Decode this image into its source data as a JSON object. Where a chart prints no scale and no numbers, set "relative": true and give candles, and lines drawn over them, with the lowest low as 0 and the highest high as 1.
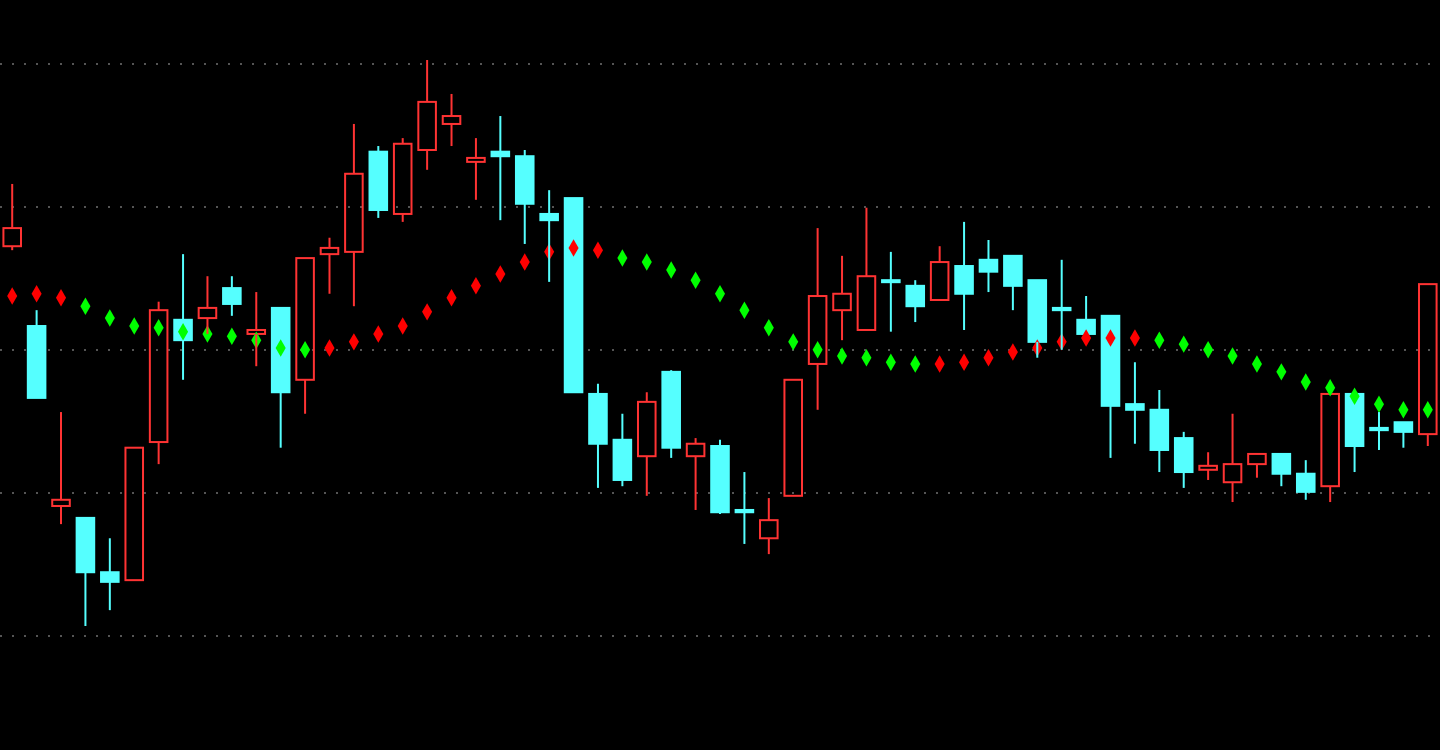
{
  "chart_data": {
    "type": "candlestick",
    "relative": true,
    "grid": true,
    "marker": "diamond",
    "categories": [
      null,
      null,
      null,
      null,
      null,
      null,
      null,
      null,
      null,
      null,
      null,
      null,
      null,
      null,
      null,
      null,
      null,
      null,
      null,
      null,
      null,
      null,
      null,
      null,
      null,
      null,
      null,
      null,
      null,
      null,
      null,
      null,
      null,
      null,
      null,
      null,
      null,
      null,
      null,
      null,
      null,
      null,
      null,
      null,
      null,
      null,
      null,
      null,
      null,
      null,
      null,
      null,
      null,
      null,
      null,
      null,
      null,
      null,
      null
    ],
    "ohlc": [
      [
        0.671,
        0.781,
        0.664,
        0.703
      ],
      [
        0.53,
        0.558,
        0.403,
        0.403
      ],
      [
        0.212,
        0.378,
        0.18,
        0.223
      ],
      [
        0.191,
        0.191,
        0,
        0.095
      ],
      [
        0.095,
        0.155,
        0.028,
        0.078
      ],
      [
        0.081,
        0.315,
        0.081,
        0.315
      ],
      [
        0.325,
        0.573,
        0.286,
        0.558
      ],
      [
        0.541,
        0.657,
        0.435,
        0.505
      ],
      [
        0.544,
        0.618,
        0.516,
        0.562
      ],
      [
        0.597,
        0.618,
        0.548,
        0.569
      ],
      [
        0.516,
        0.59,
        0.459,
        0.523
      ],
      [
        0.562,
        0.562,
        0.315,
        0.413
      ],
      [
        0.435,
        0.65,
        0.375,
        0.65
      ],
      [
        0.657,
        0.686,
        0.587,
        0.668
      ],
      [
        0.661,
        0.887,
        0.565,
        0.799
      ],
      [
        0.838,
        0.848,
        0.721,
        0.735
      ],
      [
        0.728,
        0.862,
        0.714,
        0.852
      ],
      [
        0.841,
        1,
        0.806,
        0.926
      ],
      [
        0.887,
        0.94,
        0.848,
        0.901
      ],
      [
        0.82,
        0.862,
        0.753,
        0.827
      ],
      [
        0.838,
        0.901,
        0.717,
        0.83
      ],
      [
        0.83,
        0.841,
        0.675,
        0.746
      ],
      [
        0.728,
        0.77,
        0.608,
        0.717
      ],
      [
        0.756,
        0.756,
        0.413,
        0.413
      ],
      [
        0.41,
        0.428,
        0.244,
        0.322
      ],
      [
        0.329,
        0.375,
        0.247,
        0.258
      ],
      [
        0.3,
        0.413,
        0.23,
        0.396
      ],
      [
        0.449,
        0.452,
        0.297,
        0.315
      ],
      [
        0.3,
        0.332,
        0.205,
        0.322
      ],
      [
        0.318,
        0.329,
        0.198,
        0.201
      ],
      [
        0.205,
        0.272,
        0.145,
        0.201
      ],
      [
        0.155,
        0.226,
        0.127,
        0.187
      ],
      [
        0.23,
        0.435,
        0.23,
        0.435
      ],
      [
        0.463,
        0.703,
        0.382,
        0.583
      ],
      [
        0.558,
        0.654,
        0.505,
        0.587
      ],
      [
        0.523,
        0.739,
        0.523,
        0.618
      ],
      [
        0.611,
        0.661,
        0.52,
        0.608
      ],
      [
        0.601,
        0.611,
        0.537,
        0.565
      ],
      [
        0.576,
        0.671,
        0.576,
        0.643
      ],
      [
        0.636,
        0.714,
        0.523,
        0.587
      ],
      [
        0.647,
        0.682,
        0.59,
        0.626
      ],
      [
        0.654,
        0.654,
        0.558,
        0.601
      ],
      [
        0.611,
        0.611,
        0.474,
        0.502
      ],
      [
        0.562,
        0.647,
        0.488,
        0.558
      ],
      [
        0.541,
        0.583,
        0.516,
        0.516
      ],
      [
        0.548,
        0.548,
        0.297,
        0.389
      ],
      [
        0.392,
        0.466,
        0.322,
        0.382
      ],
      [
        0.382,
        0.417,
        0.272,
        0.311
      ],
      [
        0.332,
        0.343,
        0.244,
        0.272
      ],
      [
        0.276,
        0.307,
        0.258,
        0.283
      ],
      [
        0.254,
        0.375,
        0.219,
        0.286
      ],
      [
        0.286,
        0.304,
        0.262,
        0.304
      ],
      [
        0.304,
        0.304,
        0.247,
        0.269
      ],
      [
        0.269,
        0.293,
        0.223,
        0.237
      ],
      [
        0.247,
        0.41,
        0.219,
        0.41
      ],
      [
        0.41,
        0.41,
        0.272,
        0.318
      ],
      [
        0.35,
        0.378,
        0.311,
        0.346
      ],
      [
        0.36,
        0.36,
        0.315,
        0.343
      ],
      [
        0.339,
        0.604,
        0.318,
        0.604
      ]
    ],
    "colors": [
      "#ff3333",
      "#55ffff",
      "#ff3333",
      "#55ffff",
      "#55ffff",
      "#ff3333",
      "#ff3333",
      "#55ffff",
      "#ff3333",
      "#55ffff",
      "#ff3333",
      "#55ffff",
      "#ff3333",
      "#ff3333",
      "#ff3333",
      "#55ffff",
      "#ff3333",
      "#ff3333",
      "#ff3333",
      "#ff3333",
      "#55ffff",
      "#55ffff",
      "#55ffff",
      "#55ffff",
      "#55ffff",
      "#55ffff",
      "#ff3333",
      "#55ffff",
      "#ff3333",
      "#55ffff",
      "#55ffff",
      "#ff3333",
      "#ff3333",
      "#ff3333",
      "#ff3333",
      "#ff3333",
      "#55ffff",
      "#55ffff",
      "#ff3333",
      "#55ffff",
      "#55ffff",
      "#55ffff",
      "#55ffff",
      "#55ffff",
      "#55ffff",
      "#55ffff",
      "#55ffff",
      "#55ffff",
      "#55ffff",
      "#ff3333",
      "#ff3333",
      "#ff3333",
      "#55ffff",
      "#55ffff",
      "#ff3333",
      "#55ffff",
      "#55ffff",
      "#55ffff",
      "#ff3333"
    ],
    "series": [
      {
        "type": "scatter",
        "color": "#ff0000",
        "values": [
          0.583,
          0.587,
          0.58,
          null,
          null,
          null,
          null,
          null,
          null,
          null,
          null,
          null,
          null,
          0.491,
          0.502,
          0.516,
          0.53,
          0.555,
          0.58,
          0.601,
          0.622,
          0.643,
          0.661,
          0.668,
          0.664,
          null,
          null,
          null,
          null,
          null,
          null,
          null,
          null,
          null,
          null,
          null,
          null,
          null,
          0.463,
          0.466,
          0.474,
          0.484,
          0.491,
          0.502,
          0.509,
          0.509,
          0.509,
          null,
          null,
          null,
          null,
          null,
          null,
          null,
          null,
          null,
          null,
          null,
          null
        ]
      },
      {
        "type": "scatter",
        "color": "#00ff00",
        "values": [
          null,
          null,
          null,
          0.565,
          0.544,
          0.53,
          0.527,
          0.52,
          0.516,
          0.512,
          0.505,
          0.491,
          0.488,
          null,
          null,
          null,
          null,
          null,
          null,
          null,
          null,
          null,
          null,
          null,
          null,
          0.65,
          0.643,
          0.629,
          0.611,
          0.587,
          0.558,
          0.527,
          0.502,
          0.488,
          0.477,
          0.474,
          0.466,
          0.463,
          null,
          null,
          null,
          null,
          null,
          null,
          null,
          null,
          null,
          0.505,
          0.498,
          0.488,
          0.477,
          0.463,
          0.449,
          0.431,
          0.421,
          0.406,
          0.392,
          0.382,
          0.382
        ]
      }
    ]
  }
}
